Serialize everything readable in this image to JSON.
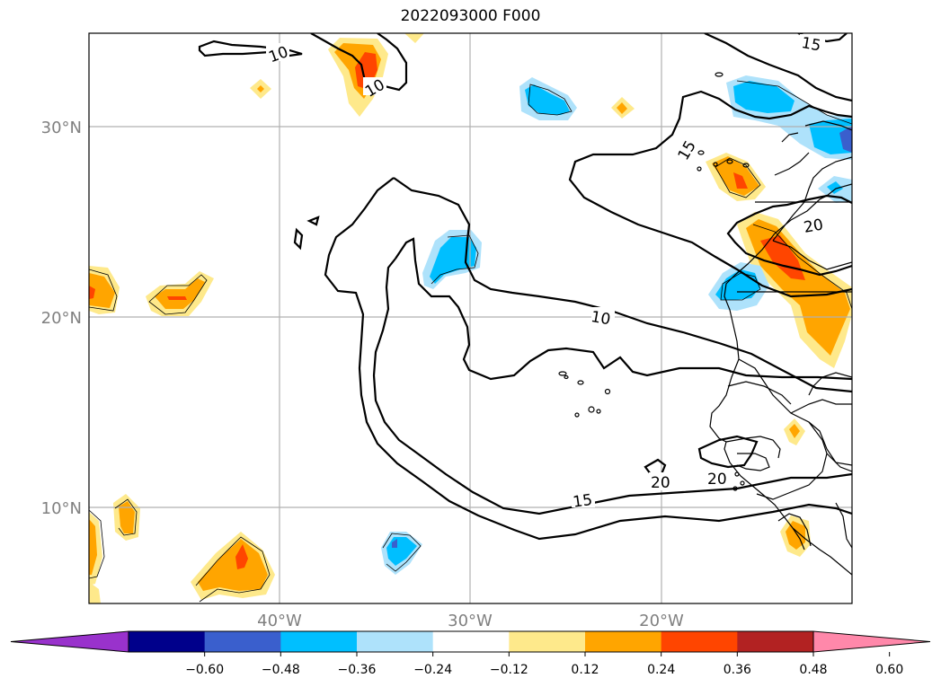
{
  "title": "2022093000 F000",
  "map": {
    "lat_labels": [
      "30°N",
      "20°N",
      "10°N"
    ],
    "lon_labels": [
      "40°W",
      "30°W",
      "20°W"
    ],
    "contour_labels": [
      "10",
      "10",
      "10",
      "15",
      "15",
      "15",
      "20",
      "20"
    ]
  },
  "colorbar": {
    "colors": [
      "#9932cc",
      "#00008b",
      "#3a5fcd",
      "#00bfff",
      "#aee2fb",
      "#ffffff",
      "#fee98b",
      "#ffa500",
      "#ff4500",
      "#b22222",
      "#ff88aa"
    ],
    "ticks": [
      "−0.60",
      "−0.48",
      "−0.36",
      "−0.24",
      "−0.12",
      "0.12",
      "0.24",
      "0.36",
      "0.48",
      "0.60"
    ]
  }
}
